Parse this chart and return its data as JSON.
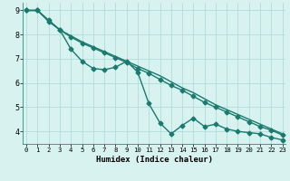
{
  "xlabel": "Humidex (Indice chaleur)",
  "background_color": "#d8f2f0",
  "grid_color": "#b0ddd8",
  "line_color": "#1a7a6e",
  "x_data": [
    0,
    1,
    2,
    3,
    4,
    5,
    6,
    7,
    8,
    9,
    10,
    11,
    12,
    13,
    14,
    15,
    16,
    17,
    18,
    19,
    20,
    21,
    22,
    23
  ],
  "y_line1": [
    9.0,
    9.0,
    8.6,
    8.2,
    7.4,
    6.9,
    6.6,
    6.55,
    6.65,
    6.9,
    6.45,
    5.15,
    4.35,
    3.9,
    4.25,
    4.55,
    4.2,
    4.3,
    4.1,
    4.0,
    3.95,
    3.9,
    3.75,
    3.65
  ],
  "y_line2": [
    9.0,
    9.0,
    8.55,
    8.2,
    7.9,
    7.65,
    7.45,
    7.25,
    7.05,
    6.85,
    6.6,
    6.4,
    6.15,
    5.9,
    5.7,
    5.45,
    5.2,
    5.0,
    4.8,
    4.6,
    4.4,
    4.2,
    4.05,
    3.85
  ],
  "y_line3": [
    9.0,
    9.0,
    8.55,
    8.2,
    7.95,
    7.7,
    7.5,
    7.3,
    7.1,
    6.9,
    6.7,
    6.5,
    6.3,
    6.05,
    5.8,
    5.6,
    5.35,
    5.1,
    4.9,
    4.7,
    4.5,
    4.3,
    4.1,
    3.9
  ],
  "ylim": [
    3.5,
    9.3
  ],
  "xlim": [
    -0.3,
    23.3
  ],
  "yticks": [
    4,
    5,
    6,
    7,
    8,
    9
  ],
  "xticks": [
    0,
    1,
    2,
    3,
    4,
    5,
    6,
    7,
    8,
    9,
    10,
    11,
    12,
    13,
    14,
    15,
    16,
    17,
    18,
    19,
    20,
    21,
    22,
    23
  ],
  "marker": "D",
  "markersize": 2.5,
  "linewidth": 1.0
}
